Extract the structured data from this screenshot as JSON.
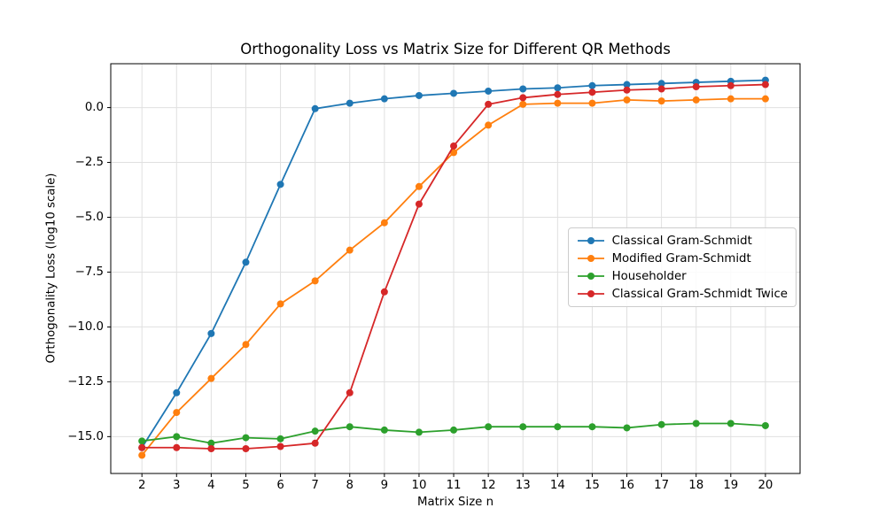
{
  "chart_data": {
    "type": "line",
    "title": "Orthogonality Loss vs Matrix Size for Different QR Methods",
    "xlabel": "Matrix Size n",
    "ylabel": "Orthogonality Loss (log10 scale)",
    "x": [
      2,
      3,
      4,
      5,
      6,
      7,
      8,
      9,
      10,
      11,
      12,
      13,
      14,
      15,
      16,
      17,
      18,
      19,
      20
    ],
    "series": [
      {
        "name": "Classical Gram-Schmidt",
        "color": "#1f77b4",
        "values": [
          -15.5,
          -13.0,
          -10.3,
          -7.05,
          -3.5,
          -0.05,
          0.2,
          0.4,
          0.55,
          0.65,
          0.75,
          0.85,
          0.9,
          1.0,
          1.05,
          1.1,
          1.15,
          1.2,
          1.25
        ]
      },
      {
        "name": "Modified Gram-Schmidt",
        "color": "#ff7f0e",
        "values": [
          -15.85,
          -13.9,
          -12.35,
          -10.8,
          -8.95,
          -7.9,
          -6.5,
          -5.25,
          -3.6,
          -2.05,
          -0.8,
          0.15,
          0.2,
          0.2,
          0.35,
          0.3,
          0.35,
          0.4,
          0.4
        ]
      },
      {
        "name": "Householder",
        "color": "#2ca02c",
        "values": [
          -15.2,
          -15.0,
          -15.3,
          -15.05,
          -15.1,
          -14.75,
          -14.55,
          -14.7,
          -14.8,
          -14.7,
          -14.55,
          -14.55,
          -14.55,
          -14.55,
          -14.6,
          -14.45,
          -14.4,
          -14.4,
          -14.5
        ]
      },
      {
        "name": "Classical Gram-Schmidt Twice",
        "color": "#d62728",
        "values": [
          -15.5,
          -15.5,
          -15.55,
          -15.55,
          -15.45,
          -15.3,
          -13.0,
          -8.4,
          -4.4,
          -1.75,
          0.15,
          0.45,
          0.6,
          0.7,
          0.8,
          0.85,
          0.95,
          1.0,
          1.05
        ]
      }
    ],
    "xlim": [
      1.1,
      21.0
    ],
    "ylim": [
      -16.68,
      2.0
    ],
    "x_ticks": [
      2,
      3,
      4,
      5,
      6,
      7,
      8,
      9,
      10,
      11,
      12,
      13,
      14,
      15,
      16,
      17,
      18,
      19,
      20
    ],
    "y_ticks": [
      0,
      -2.5,
      -5,
      -7.5,
      -10,
      -12.5,
      -15
    ],
    "y_tick_labels": [
      "0.0",
      "−2.5",
      "−5.0",
      "−7.5",
      "−10.0",
      "−12.5",
      "−15.0"
    ],
    "grid": true,
    "grid_color": "#e0e0e0",
    "spine_color": "#000000",
    "tick_color": "#000000",
    "legend_position": "center right",
    "marker": "circle"
  }
}
